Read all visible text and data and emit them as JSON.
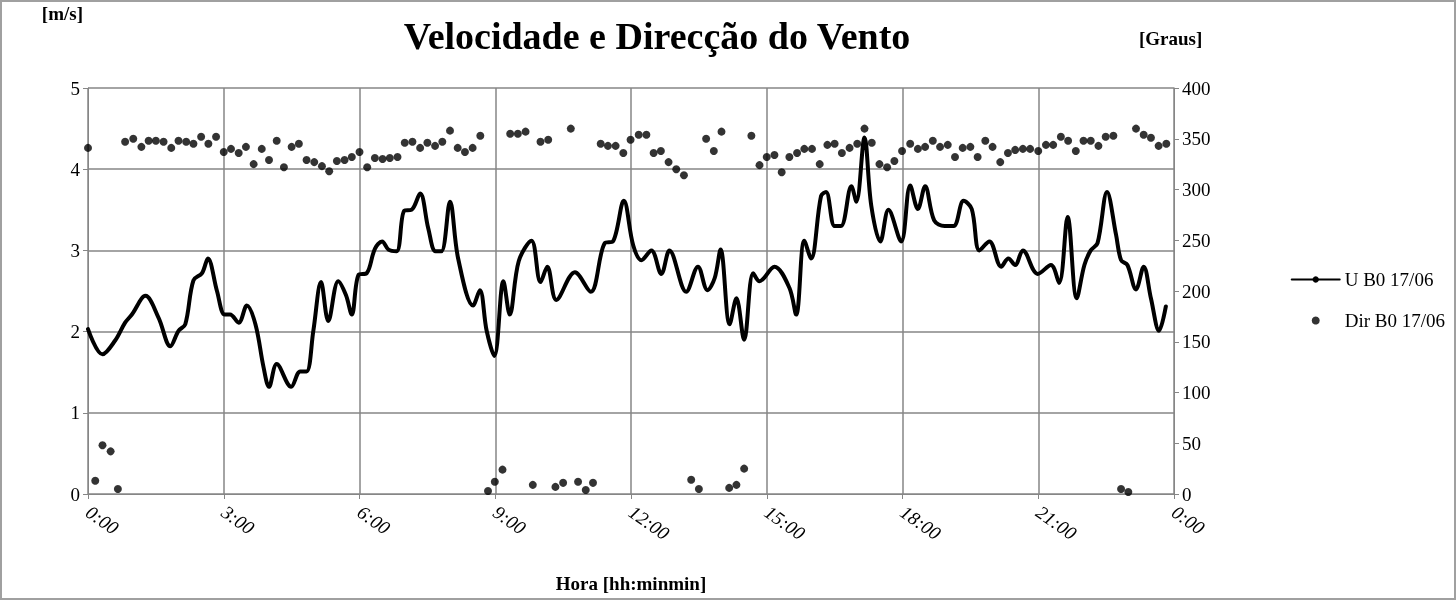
{
  "chart_data": {
    "type": "line",
    "title": "Velocidade e Direcção do Vento",
    "xlabel": "Hora [hh:minmin]",
    "ylabel": "[m/s]",
    "y2label": "[Graus]",
    "xlim": [
      0,
      24
    ],
    "xticks": [
      {
        "value": 0,
        "label": "0:00"
      },
      {
        "value": 3,
        "label": "3:00"
      },
      {
        "value": 6,
        "label": "6:00"
      },
      {
        "value": 9,
        "label": "9:00"
      },
      {
        "value": 12,
        "label": "12:00"
      },
      {
        "value": 15,
        "label": "15:00"
      },
      {
        "value": 18,
        "label": "18:00"
      },
      {
        "value": 21,
        "label": "21:00"
      },
      {
        "value": 24,
        "label": "0:00"
      }
    ],
    "ylim": [
      0,
      5
    ],
    "yticks": [
      0,
      1,
      2,
      3,
      4,
      5
    ],
    "y2lim": [
      0,
      400
    ],
    "y2ticks": [
      0,
      50,
      100,
      150,
      200,
      250,
      300,
      350,
      400
    ],
    "grid": true,
    "legend": "right",
    "series": [
      {
        "name": "U B0 17/06",
        "color": "#000000",
        "marker": "none",
        "line_style": "solid",
        "x": [
          0,
          0.32,
          0.6,
          0.82,
          0.97,
          1.27,
          1.56,
          1.82,
          2.0,
          2.15,
          2.33,
          2.52,
          2.65,
          2.85,
          3.02,
          3.14,
          3.33,
          3.51,
          3.7,
          3.88,
          4.0,
          4.17,
          4.49,
          4.69,
          4.83,
          4.98,
          5.15,
          5.31,
          5.53,
          5.7,
          5.83,
          5.98,
          6.16,
          6.34,
          6.5,
          6.64,
          6.82,
          6.99,
          7.15,
          7.34,
          7.52,
          7.68,
          7.81,
          8.0,
          8.18,
          8.51,
          8.66,
          8.81,
          8.98,
          9.18,
          9.32,
          9.52,
          9.8,
          10.0,
          10.15,
          10.35,
          10.76,
          11.11,
          11.42,
          11.6,
          11.84,
          12.05,
          12.23,
          12.45,
          12.67,
          12.85,
          13.22,
          13.48,
          13.69,
          13.85,
          13.98,
          14.18,
          14.33,
          14.5,
          14.7,
          14.84,
          15.17,
          15.5,
          15.65,
          15.83,
          15.98,
          16.2,
          16.31,
          16.5,
          16.64,
          16.87,
          16.98,
          17.16,
          17.31,
          17.51,
          17.69,
          17.97,
          18.17,
          18.34,
          18.5,
          18.7,
          18.93,
          19.13,
          19.35,
          19.53,
          19.7,
          19.92,
          20.18,
          20.34,
          20.49,
          20.66,
          20.99,
          21.28,
          21.46,
          21.65,
          21.85,
          22.02,
          22.16,
          22.31,
          22.52,
          22.72,
          22.83,
          22.97,
          23.16,
          23.33,
          23.49,
          23.67,
          23.82
        ],
        "values": [
          2.03,
          1.72,
          1.89,
          2.11,
          2.21,
          2.44,
          2.17,
          1.82,
          2.01,
          2.09,
          2.63,
          2.72,
          2.9,
          2.5,
          2.21,
          2.21,
          2.11,
          2.32,
          2.09,
          1.56,
          1.32,
          1.6,
          1.32,
          1.51,
          1.51,
          2.01,
          2.61,
          2.13,
          2.62,
          2.45,
          2.21,
          2.7,
          2.72,
          3.02,
          3.11,
          3.01,
          2.99,
          3.49,
          3.5,
          3.7,
          3.27,
          2.99,
          2.99,
          3.6,
          2.9,
          2.32,
          2.51,
          2.01,
          1.7,
          2.62,
          2.21,
          2.87,
          3.12,
          2.61,
          2.8,
          2.39,
          2.73,
          2.49,
          3.09,
          3.11,
          3.61,
          3.06,
          2.88,
          3.0,
          2.71,
          3.0,
          2.49,
          2.8,
          2.51,
          2.66,
          3.01,
          2.09,
          2.41,
          1.9,
          2.72,
          2.62,
          2.8,
          2.54,
          2.21,
          3.12,
          2.9,
          3.67,
          3.72,
          3.3,
          3.3,
          3.79,
          3.6,
          4.39,
          3.55,
          3.11,
          3.5,
          3.11,
          3.8,
          3.51,
          3.79,
          3.37,
          3.3,
          3.3,
          3.61,
          3.51,
          3.0,
          3.11,
          2.8,
          2.9,
          2.82,
          3.0,
          2.71,
          2.82,
          2.6,
          3.41,
          2.41,
          2.82,
          3.0,
          3.09,
          3.72,
          3.19,
          2.88,
          2.82,
          2.52,
          2.8,
          2.41,
          2.01,
          2.31
        ]
      },
      {
        "name": "Dir B0 17/06",
        "type": "scatter",
        "axis": "y2",
        "color": "#000000",
        "marker": "circle",
        "x": [
          0,
          0.16,
          0.32,
          0.5,
          0.66,
          0.82,
          1.0,
          1.18,
          1.34,
          1.5,
          1.67,
          1.84,
          2.0,
          2.17,
          2.33,
          2.5,
          2.66,
          2.83,
          3.0,
          3.16,
          3.33,
          3.49,
          3.66,
          3.84,
          4.0,
          4.17,
          4.33,
          4.5,
          4.66,
          4.83,
          5.0,
          5.17,
          5.33,
          5.5,
          5.67,
          5.83,
          6.0,
          6.17,
          6.34,
          6.51,
          6.67,
          6.84,
          7.0,
          7.17,
          7.34,
          7.5,
          7.67,
          7.83,
          8.0,
          8.17,
          8.33,
          8.5,
          8.67,
          8.84,
          8.99,
          9.16,
          9.33,
          9.5,
          9.67,
          9.83,
          10.0,
          10.17,
          10.33,
          10.5,
          10.67,
          10.83,
          11.0,
          11.16,
          11.33,
          11.49,
          11.66,
          11.83,
          11.99,
          12.17,
          12.34,
          12.5,
          12.66,
          12.83,
          13.0,
          13.17,
          13.33,
          13.5,
          13.66,
          13.83,
          14.0,
          14.17,
          14.33,
          14.5,
          14.66,
          14.84,
          15.0,
          15.17,
          15.33,
          15.5,
          15.67,
          15.83,
          16.0,
          16.17,
          16.34,
          16.5,
          16.66,
          16.83,
          17.0,
          17.16,
          17.32,
          17.49,
          17.66,
          17.82,
          17.99,
          18.17,
          18.34,
          18.5,
          18.67,
          18.83,
          19.0,
          19.16,
          19.33,
          19.5,
          19.66,
          19.83,
          19.99,
          20.16,
          20.33,
          20.49,
          20.66,
          20.82,
          21.0,
          21.17,
          21.33,
          21.5,
          21.66,
          21.83,
          22.0,
          22.16,
          22.33,
          22.49,
          22.66,
          22.83,
          22.99,
          23.16,
          23.33,
          23.49,
          23.66,
          23.83
        ],
        "values": [
          341,
          13,
          48,
          42,
          5,
          347,
          350,
          342,
          348,
          348,
          347,
          341,
          348,
          347,
          345,
          352,
          345,
          352,
          337,
          340,
          336,
          342,
          325,
          340,
          329,
          348,
          322,
          342,
          345,
          329,
          327,
          323,
          318,
          328,
          329,
          332,
          337,
          322,
          331,
          330,
          331,
          332,
          346,
          347,
          341,
          346,
          343,
          347,
          358,
          341,
          337,
          341,
          353,
          3,
          12,
          24,
          355,
          355,
          357,
          9,
          347,
          349,
          7,
          11,
          360,
          12,
          4,
          11,
          345,
          343,
          343,
          336,
          349,
          354,
          354,
          336,
          338,
          327,
          320,
          314,
          14,
          5,
          350,
          338,
          357,
          6,
          9,
          25,
          353,
          324,
          332,
          334,
          317,
          332,
          336,
          340,
          340,
          325,
          344,
          345,
          336,
          341,
          345,
          360,
          346,
          325,
          322,
          328,
          338,
          345,
          340,
          342,
          348,
          342,
          344,
          332,
          341,
          342,
          332,
          348,
          342,
          327,
          336,
          339,
          340,
          340,
          338,
          344,
          344,
          352,
          348,
          338,
          348,
          348,
          343,
          352,
          353,
          5,
          2,
          360,
          354,
          351,
          343,
          345
        ]
      }
    ]
  }
}
